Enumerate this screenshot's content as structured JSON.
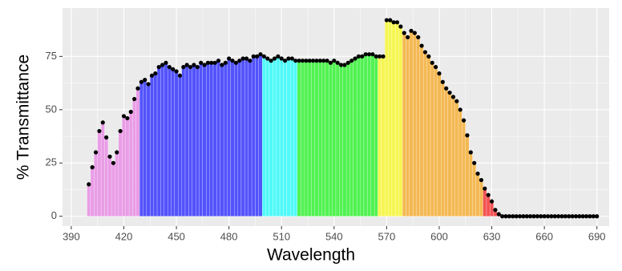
{
  "chart_data": {
    "type": "spectrum",
    "x_label": "Wavelength",
    "y_label": "% Transmittance",
    "x": [
      400,
      402,
      404,
      406,
      408,
      410,
      412,
      414,
      416,
      418,
      420,
      422,
      424,
      426,
      428,
      430,
      432,
      434,
      436,
      438,
      440,
      442,
      444,
      446,
      448,
      450,
      452,
      454,
      456,
      458,
      460,
      462,
      464,
      466,
      468,
      470,
      472,
      474,
      476,
      478,
      480,
      482,
      484,
      486,
      488,
      490,
      492,
      494,
      496,
      498,
      500,
      502,
      504,
      506,
      508,
      510,
      512,
      514,
      516,
      518,
      520,
      522,
      524,
      526,
      528,
      530,
      532,
      534,
      536,
      538,
      540,
      542,
      544,
      546,
      548,
      550,
      552,
      554,
      556,
      558,
      560,
      562,
      564,
      566,
      568,
      570,
      572,
      574,
      576,
      578,
      580,
      582,
      584,
      586,
      588,
      590,
      592,
      594,
      596,
      598,
      600,
      602,
      604,
      606,
      608,
      610,
      612,
      614,
      616,
      618,
      620,
      622,
      624,
      626,
      628,
      630,
      632,
      634,
      636,
      638,
      640,
      642,
      644,
      646,
      648,
      650,
      652,
      654,
      656,
      658,
      660,
      662,
      664,
      666,
      668,
      670,
      672,
      674,
      676,
      678,
      680,
      682,
      684,
      686,
      688,
      690
    ],
    "values": [
      15,
      23,
      30,
      40,
      44,
      37,
      28,
      25,
      30,
      40,
      47,
      46,
      49,
      55,
      60,
      63,
      64,
      62,
      66,
      67,
      70,
      71,
      72,
      70,
      69,
      68,
      66,
      70,
      71,
      70,
      71,
      70,
      72,
      71,
      72,
      72,
      72,
      73,
      71,
      72,
      74,
      73,
      72,
      73,
      74,
      74,
      73,
      75,
      75,
      76,
      75,
      74,
      73,
      74,
      75,
      74,
      73,
      74,
      74,
      73,
      73,
      73,
      73,
      73,
      73,
      73,
      73,
      73,
      73,
      72,
      73,
      72,
      71,
      71,
      72,
      73,
      74,
      75,
      75,
      76,
      76,
      76,
      75,
      75,
      75,
      92,
      92,
      91,
      91,
      89,
      86,
      84,
      87,
      86,
      84,
      80,
      77,
      75,
      72,
      70,
      67,
      63,
      60,
      58,
      56,
      54,
      50,
      45,
      38,
      30,
      25,
      20,
      17,
      13,
      10,
      7,
      3,
      1,
      0,
      0,
      0,
      0,
      0,
      0,
      0,
      0,
      0,
      0,
      0,
      0,
      0,
      0,
      0,
      0,
      0,
      0,
      0,
      0,
      0,
      0,
      0,
      0,
      0,
      0,
      0,
      0
    ],
    "point_color": "#000000",
    "bands": [
      {
        "from": 400,
        "to": 430,
        "color": "#E99DE6"
      },
      {
        "from": 430,
        "to": 500,
        "color": "#5353FB"
      },
      {
        "from": 500,
        "to": 520,
        "color": "#52F9F9"
      },
      {
        "from": 520,
        "to": 565,
        "color": "#52F252"
      },
      {
        "from": 565,
        "to": 580,
        "color": "#F6F652"
      },
      {
        "from": 580,
        "to": 625,
        "color": "#F4B954"
      },
      {
        "from": 625,
        "to": 700,
        "color": "#F25252"
      }
    ],
    "xlim": [
      385,
      697
    ],
    "ylim": [
      -4.6,
      97.7
    ],
    "xticks": [
      390,
      420,
      450,
      480,
      510,
      540,
      570,
      600,
      630,
      660,
      690
    ],
    "yticks": [
      0,
      25,
      50,
      75
    ],
    "grid": true
  }
}
